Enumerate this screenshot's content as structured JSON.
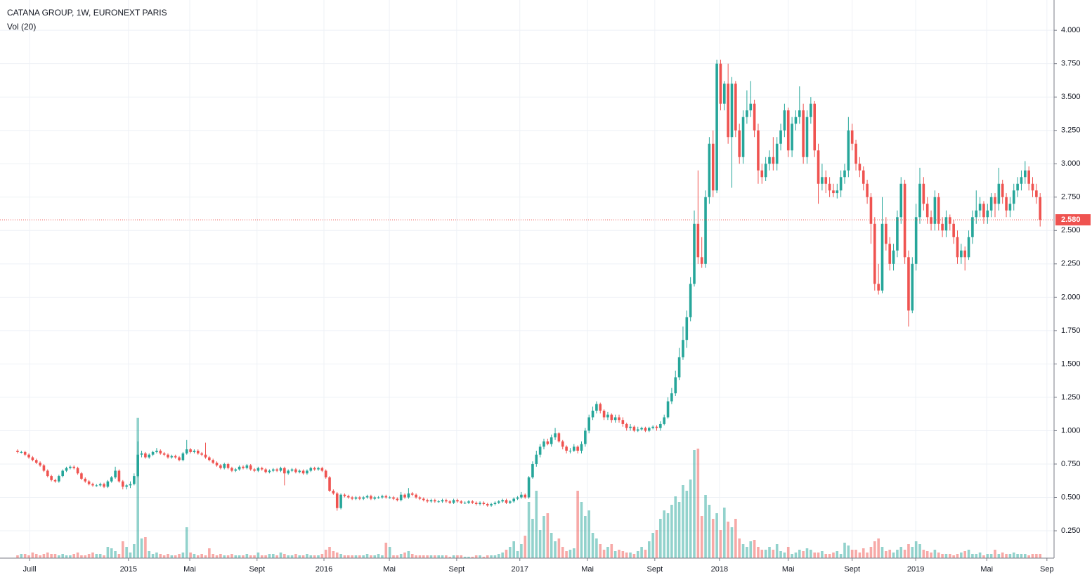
{
  "chart_data": {
    "type": "candlestick",
    "title": "CATANA GROUP, 1W, EURONEXT PARIS",
    "subtitle": "Vol (20)",
    "up_color": "#26a69a",
    "down_color": "#ef5350",
    "grid": true,
    "ylim": [
      0.045,
      4.227
    ],
    "xlim": [
      -4.67,
      275.7
    ],
    "yticks": [
      {
        "value": 0.25,
        "label": "0.250"
      },
      {
        "value": 0.5,
        "label": "0.500"
      },
      {
        "value": 0.75,
        "label": "0.750"
      },
      {
        "value": 1.0,
        "label": "1.000"
      },
      {
        "value": 1.25,
        "label": "1.250"
      },
      {
        "value": 1.5,
        "label": "1.500"
      },
      {
        "value": 1.75,
        "label": "1.750"
      },
      {
        "value": 2.0,
        "label": "2.000"
      },
      {
        "value": 2.25,
        "label": "2.250"
      },
      {
        "value": 2.5,
        "label": "2.500"
      },
      {
        "value": 2.75,
        "label": "2.750"
      },
      {
        "value": 3.0,
        "label": "3.000"
      },
      {
        "value": 3.25,
        "label": "3.250"
      },
      {
        "value": 3.5,
        "label": "3.500"
      },
      {
        "value": 3.75,
        "label": "3.750"
      },
      {
        "value": 4.0,
        "label": "4.000"
      }
    ],
    "xticks": [
      {
        "value": 3.2,
        "label": "Juill"
      },
      {
        "value": 29.5,
        "label": "2015"
      },
      {
        "value": 45.8,
        "label": "Mai"
      },
      {
        "value": 63.7,
        "label": "Sept"
      },
      {
        "value": 81.5,
        "label": "2016"
      },
      {
        "value": 98.9,
        "label": "Mai"
      },
      {
        "value": 116.8,
        "label": "Sept"
      },
      {
        "value": 133.6,
        "label": "2017"
      },
      {
        "value": 151.6,
        "label": "Mai"
      },
      {
        "value": 169.5,
        "label": "Sept"
      },
      {
        "value": 186.7,
        "label": "2018"
      },
      {
        "value": 205.0,
        "label": "Mai"
      },
      {
        "value": 222.0,
        "label": "Sept"
      },
      {
        "value": 238.9,
        "label": "2019"
      },
      {
        "value": 257.8,
        "label": "Mai"
      },
      {
        "value": 273.8,
        "label": "Sep"
      }
    ],
    "last_price": {
      "value": 2.58,
      "label": "2.580"
    },
    "open": [
      0.85,
      0.84,
      0.84,
      0.82,
      0.8,
      0.78,
      0.76,
      0.74,
      0.7,
      0.66,
      0.63,
      0.62,
      0.66,
      0.7,
      0.72,
      0.73,
      0.72,
      0.68,
      0.64,
      0.62,
      0.6,
      0.59,
      0.59,
      0.6,
      0.58,
      0.62,
      0.65,
      0.7,
      0.62,
      0.58,
      0.59,
      0.6,
      0.66,
      0.82,
      0.83,
      0.8,
      0.82,
      0.84,
      0.85,
      0.83,
      0.82,
      0.8,
      0.81,
      0.8,
      0.78,
      0.83,
      0.86,
      0.84,
      0.85,
      0.83,
      0.82,
      0.8,
      0.78,
      0.76,
      0.74,
      0.72,
      0.75,
      0.72,
      0.7,
      0.71,
      0.73,
      0.72,
      0.74,
      0.71,
      0.7,
      0.72,
      0.71,
      0.69,
      0.7,
      0.71,
      0.7,
      0.72,
      0.68,
      0.7,
      0.71,
      0.69,
      0.7,
      0.68,
      0.7,
      0.72,
      0.71,
      0.72,
      0.7,
      0.65,
      0.55,
      0.53,
      0.42,
      0.52,
      0.51,
      0.5,
      0.49,
      0.5,
      0.49,
      0.5,
      0.51,
      0.49,
      0.5,
      0.5,
      0.51,
      0.5,
      0.5,
      0.49,
      0.48,
      0.52,
      0.5,
      0.53,
      0.52,
      0.5,
      0.49,
      0.48,
      0.47,
      0.48,
      0.47,
      0.47,
      0.48,
      0.47,
      0.46,
      0.48,
      0.47,
      0.46,
      0.46,
      0.47,
      0.46,
      0.45,
      0.46,
      0.45,
      0.44,
      0.45,
      0.46,
      0.47,
      0.48,
      0.46,
      0.47,
      0.49,
      0.5,
      0.52,
      0.5,
      0.65,
      0.75,
      0.82,
      0.88,
      0.92,
      0.9,
      0.95,
      0.98,
      0.92,
      0.88,
      0.85,
      0.85,
      0.88,
      0.85,
      0.9,
      1.0,
      1.1,
      1.15,
      1.2,
      1.15,
      1.1,
      1.12,
      1.08,
      1.1,
      1.08,
      1.05,
      1.02,
      1.03,
      1.0,
      1.01,
      1.02,
      1.0,
      1.02,
      1.03,
      1.02,
      1.05,
      1.1,
      1.22,
      1.28,
      1.4,
      1.55,
      1.68,
      1.85,
      2.1,
      2.55,
      2.3,
      2.25,
      2.75,
      3.15,
      2.8,
      3.75,
      3.45,
      3.6,
      3.2,
      3.6,
      3.25,
      3.05,
      3.35,
      3.4,
      3.45,
      3.25,
      2.95,
      2.9,
      3.0,
      3.05,
      3.0,
      3.15,
      3.25,
      3.4,
      3.1,
      3.3,
      3.35,
      3.4,
      3.05,
      3.35,
      3.45,
      3.1,
      2.85,
      2.9,
      2.85,
      2.8,
      2.78,
      2.8,
      2.9,
      2.95,
      3.25,
      3.15,
      3.0,
      2.95,
      2.85,
      2.75,
      2.55,
      2.1,
      2.05,
      2.55,
      2.4,
      2.25,
      2.35,
      2.6,
      2.85,
      2.3,
      1.9,
      2.25,
      2.6,
      2.85,
      2.7,
      2.6,
      2.55,
      2.75,
      2.55,
      2.5,
      2.6,
      2.55,
      2.45,
      2.3,
      2.35,
      2.3,
      2.45,
      2.6,
      2.65,
      2.7,
      2.6,
      2.65,
      2.75,
      2.7,
      2.85,
      2.75,
      2.65,
      2.7,
      2.8,
      2.85,
      2.9,
      2.95,
      2.85,
      2.8,
      2.75
    ],
    "high": [
      0.86,
      0.85,
      0.85,
      0.83,
      0.81,
      0.79,
      0.77,
      0.75,
      0.71,
      0.67,
      0.64,
      0.67,
      0.71,
      0.73,
      0.74,
      0.74,
      0.73,
      0.69,
      0.65,
      0.63,
      0.61,
      0.6,
      0.61,
      0.61,
      0.63,
      0.66,
      0.73,
      0.71,
      0.63,
      0.6,
      0.62,
      0.68,
      0.92,
      0.85,
      0.84,
      0.83,
      0.85,
      0.87,
      0.86,
      0.84,
      0.83,
      0.82,
      0.82,
      0.81,
      0.84,
      0.93,
      0.87,
      0.86,
      0.86,
      0.84,
      0.91,
      0.81,
      0.79,
      0.77,
      0.75,
      0.76,
      0.76,
      0.73,
      0.72,
      0.74,
      0.74,
      0.75,
      0.75,
      0.72,
      0.73,
      0.73,
      0.72,
      0.71,
      0.72,
      0.72,
      0.73,
      0.73,
      0.71,
      0.72,
      0.72,
      0.71,
      0.71,
      0.71,
      0.73,
      0.73,
      0.73,
      0.73,
      0.71,
      0.66,
      0.56,
      0.54,
      0.53,
      0.53,
      0.52,
      0.51,
      0.51,
      0.51,
      0.51,
      0.52,
      0.52,
      0.51,
      0.51,
      0.52,
      0.52,
      0.51,
      0.51,
      0.5,
      0.54,
      0.53,
      0.57,
      0.54,
      0.53,
      0.51,
      0.5,
      0.49,
      0.49,
      0.49,
      0.48,
      0.49,
      0.49,
      0.48,
      0.49,
      0.49,
      0.48,
      0.47,
      0.48,
      0.48,
      0.47,
      0.47,
      0.47,
      0.46,
      0.46,
      0.47,
      0.48,
      0.49,
      0.49,
      0.48,
      0.5,
      0.51,
      0.54,
      0.53,
      0.66,
      0.77,
      0.85,
      0.9,
      0.94,
      0.94,
      0.97,
      1.02,
      0.99,
      0.93,
      0.89,
      0.87,
      0.9,
      0.89,
      0.92,
      1.02,
      1.12,
      1.18,
      1.22,
      1.21,
      1.16,
      1.14,
      1.13,
      1.12,
      1.12,
      1.1,
      1.06,
      1.05,
      1.04,
      1.03,
      1.03,
      1.03,
      1.03,
      1.04,
      1.04,
      1.07,
      1.12,
      1.25,
      1.32,
      1.45,
      1.62,
      1.78,
      1.9,
      2.15,
      2.65,
      2.95,
      2.45,
      2.8,
      3.2,
      3.25,
      3.78,
      3.78,
      3.62,
      3.75,
      3.65,
      3.62,
      3.3,
      3.4,
      3.55,
      3.62,
      3.48,
      3.3,
      3.0,
      3.05,
      3.1,
      3.2,
      3.2,
      3.3,
      3.45,
      3.42,
      3.35,
      3.4,
      3.58,
      3.45,
      3.4,
      3.5,
      3.47,
      3.15,
      3.0,
      2.95,
      2.9,
      2.85,
      2.85,
      2.95,
      3.0,
      3.35,
      3.3,
      3.18,
      3.05,
      2.98,
      2.88,
      2.78,
      2.6,
      2.25,
      2.75,
      2.6,
      2.45,
      2.4,
      2.65,
      2.9,
      2.88,
      2.35,
      2.3,
      2.7,
      2.97,
      2.9,
      2.75,
      2.65,
      2.8,
      2.78,
      2.6,
      2.65,
      2.62,
      2.58,
      2.5,
      2.4,
      2.38,
      2.5,
      2.65,
      2.8,
      2.75,
      2.72,
      2.7,
      2.78,
      2.78,
      2.97,
      2.88,
      2.78,
      2.75,
      2.85,
      2.9,
      2.95,
      3.02,
      2.98,
      2.9,
      2.85,
      2.78
    ],
    "low": [
      0.83,
      0.83,
      0.81,
      0.79,
      0.77,
      0.75,
      0.73,
      0.69,
      0.65,
      0.62,
      0.61,
      0.61,
      0.65,
      0.69,
      0.71,
      0.71,
      0.67,
      0.63,
      0.61,
      0.59,
      0.58,
      0.58,
      0.58,
      0.57,
      0.57,
      0.61,
      0.64,
      0.61,
      0.56,
      0.56,
      0.57,
      0.59,
      0.65,
      0.8,
      0.79,
      0.79,
      0.81,
      0.83,
      0.82,
      0.81,
      0.79,
      0.79,
      0.79,
      0.77,
      0.77,
      0.82,
      0.83,
      0.83,
      0.82,
      0.81,
      0.79,
      0.77,
      0.75,
      0.73,
      0.71,
      0.71,
      0.71,
      0.69,
      0.69,
      0.7,
      0.71,
      0.71,
      0.7,
      0.69,
      0.69,
      0.7,
      0.68,
      0.68,
      0.69,
      0.69,
      0.69,
      0.59,
      0.67,
      0.69,
      0.68,
      0.68,
      0.67,
      0.67,
      0.69,
      0.7,
      0.7,
      0.69,
      0.64,
      0.54,
      0.52,
      0.4,
      0.41,
      0.5,
      0.49,
      0.48,
      0.48,
      0.48,
      0.48,
      0.49,
      0.48,
      0.48,
      0.49,
      0.49,
      0.49,
      0.49,
      0.48,
      0.47,
      0.47,
      0.49,
      0.49,
      0.51,
      0.49,
      0.48,
      0.47,
      0.46,
      0.46,
      0.46,
      0.46,
      0.46,
      0.46,
      0.45,
      0.45,
      0.46,
      0.45,
      0.45,
      0.45,
      0.45,
      0.44,
      0.44,
      0.44,
      0.43,
      0.43,
      0.44,
      0.45,
      0.46,
      0.45,
      0.45,
      0.46,
      0.48,
      0.49,
      0.49,
      0.49,
      0.64,
      0.73,
      0.8,
      0.86,
      0.89,
      0.88,
      0.93,
      0.91,
      0.86,
      0.83,
      0.83,
      0.84,
      0.83,
      0.83,
      0.88,
      0.98,
      1.08,
      1.13,
      1.13,
      1.08,
      1.08,
      1.06,
      1.06,
      1.06,
      1.03,
      1.0,
      1.0,
      0.99,
      0.99,
      1.0,
      0.99,
      0.99,
      1.01,
      1.0,
      1.0,
      1.04,
      1.09,
      1.2,
      1.26,
      1.38,
      1.53,
      1.62,
      1.82,
      2.08,
      2.25,
      2.22,
      2.22,
      2.7,
      2.75,
      2.78,
      3.4,
      3.4,
      3.15,
      2.82,
      3.2,
      3.0,
      3.0,
      3.3,
      3.35,
      3.2,
      2.85,
      2.85,
      2.87,
      2.95,
      2.95,
      2.95,
      3.1,
      3.2,
      3.05,
      3.05,
      3.25,
      3.3,
      3.0,
      3.0,
      3.3,
      3.05,
      2.7,
      2.8,
      2.78,
      2.75,
      2.75,
      2.74,
      2.75,
      2.85,
      2.9,
      3.1,
      2.95,
      2.9,
      2.8,
      2.7,
      2.4,
      2.05,
      2.02,
      2.03,
      2.35,
      2.2,
      2.2,
      2.3,
      2.55,
      2.25,
      1.78,
      1.88,
      2.2,
      2.55,
      2.65,
      2.55,
      2.5,
      2.5,
      2.5,
      2.45,
      2.45,
      2.5,
      2.4,
      2.25,
      2.25,
      2.2,
      2.28,
      2.4,
      2.55,
      2.6,
      2.55,
      2.55,
      2.6,
      2.6,
      2.65,
      2.7,
      2.6,
      2.6,
      2.65,
      2.75,
      2.8,
      2.85,
      2.8,
      2.75,
      2.7,
      2.53
    ],
    "close": [
      0.84,
      0.84,
      0.82,
      0.8,
      0.78,
      0.76,
      0.74,
      0.7,
      0.66,
      0.63,
      0.62,
      0.66,
      0.7,
      0.72,
      0.73,
      0.72,
      0.68,
      0.64,
      0.62,
      0.6,
      0.59,
      0.59,
      0.6,
      0.58,
      0.62,
      0.65,
      0.7,
      0.62,
      0.58,
      0.59,
      0.6,
      0.66,
      0.82,
      0.83,
      0.8,
      0.82,
      0.84,
      0.85,
      0.83,
      0.82,
      0.8,
      0.81,
      0.8,
      0.78,
      0.83,
      0.86,
      0.84,
      0.85,
      0.83,
      0.82,
      0.8,
      0.78,
      0.76,
      0.74,
      0.72,
      0.75,
      0.72,
      0.7,
      0.71,
      0.73,
      0.72,
      0.74,
      0.71,
      0.7,
      0.72,
      0.71,
      0.69,
      0.7,
      0.71,
      0.7,
      0.72,
      0.68,
      0.7,
      0.71,
      0.69,
      0.7,
      0.68,
      0.7,
      0.72,
      0.71,
      0.72,
      0.7,
      0.65,
      0.55,
      0.53,
      0.42,
      0.52,
      0.51,
      0.5,
      0.49,
      0.5,
      0.49,
      0.5,
      0.51,
      0.49,
      0.5,
      0.5,
      0.51,
      0.5,
      0.5,
      0.49,
      0.48,
      0.52,
      0.5,
      0.53,
      0.52,
      0.5,
      0.49,
      0.48,
      0.47,
      0.48,
      0.47,
      0.47,
      0.48,
      0.47,
      0.46,
      0.48,
      0.47,
      0.46,
      0.46,
      0.47,
      0.46,
      0.45,
      0.46,
      0.45,
      0.44,
      0.45,
      0.46,
      0.47,
      0.48,
      0.46,
      0.47,
      0.49,
      0.5,
      0.52,
      0.5,
      0.65,
      0.75,
      0.82,
      0.88,
      0.92,
      0.9,
      0.95,
      0.98,
      0.92,
      0.88,
      0.85,
      0.85,
      0.88,
      0.85,
      0.9,
      1.0,
      1.1,
      1.15,
      1.2,
      1.15,
      1.1,
      1.12,
      1.08,
      1.1,
      1.08,
      1.05,
      1.02,
      1.03,
      1.0,
      1.01,
      1.02,
      1.0,
      1.02,
      1.03,
      1.02,
      1.05,
      1.1,
      1.22,
      1.28,
      1.4,
      1.55,
      1.68,
      1.85,
      2.1,
      2.55,
      2.3,
      2.25,
      2.75,
      3.15,
      2.8,
      3.75,
      3.45,
      3.6,
      3.2,
      3.6,
      3.25,
      3.05,
      3.35,
      3.4,
      3.45,
      3.25,
      2.95,
      2.9,
      3.0,
      3.05,
      3.0,
      3.15,
      3.25,
      3.4,
      3.1,
      3.3,
      3.35,
      3.4,
      3.05,
      3.35,
      3.45,
      3.1,
      2.85,
      2.9,
      2.85,
      2.8,
      2.78,
      2.8,
      2.9,
      2.95,
      3.25,
      3.15,
      3.0,
      2.95,
      2.85,
      2.75,
      2.55,
      2.1,
      2.05,
      2.55,
      2.4,
      2.25,
      2.35,
      2.6,
      2.85,
      2.3,
      1.9,
      2.25,
      2.6,
      2.85,
      2.7,
      2.6,
      2.55,
      2.75,
      2.55,
      2.5,
      2.6,
      2.55,
      2.45,
      2.3,
      2.35,
      2.3,
      2.45,
      2.6,
      2.65,
      2.7,
      2.6,
      2.65,
      2.75,
      2.7,
      2.85,
      2.75,
      2.65,
      2.7,
      2.8,
      2.85,
      2.9,
      2.95,
      2.85,
      2.8,
      2.75,
      2.58
    ],
    "volume": [
      2,
      3,
      3,
      2,
      4,
      3,
      2,
      3,
      4,
      3,
      3,
      2,
      3,
      2,
      2,
      3,
      4,
      2,
      2,
      3,
      4,
      3,
      3,
      2,
      8,
      7,
      5,
      3,
      12,
      8,
      4,
      10,
      100,
      14,
      15,
      5,
      3,
      4,
      3,
      2,
      3,
      2,
      2,
      3,
      4,
      22,
      4,
      3,
      2,
      3,
      2,
      7,
      3,
      2,
      3,
      2,
      2,
      3,
      2,
      2,
      2,
      3,
      2,
      2,
      4,
      2,
      2,
      3,
      3,
      2,
      4,
      3,
      2,
      2,
      3,
      2,
      2,
      3,
      2,
      2,
      2,
      3,
      6,
      8,
      5,
      4,
      3,
      2,
      2,
      2,
      2,
      2,
      2,
      3,
      2,
      2,
      3,
      2,
      11,
      8,
      2,
      2,
      3,
      4,
      5,
      3,
      2,
      2,
      2,
      2,
      2,
      2,
      2,
      2,
      2,
      1,
      2,
      2,
      2,
      1,
      1,
      1,
      2,
      2,
      1,
      2,
      2,
      2,
      3,
      4,
      6,
      8,
      12,
      5,
      10,
      16,
      40,
      28,
      48,
      20,
      30,
      32,
      18,
      12,
      14,
      8,
      5,
      6,
      7,
      48,
      40,
      30,
      34,
      18,
      14,
      10,
      6,
      8,
      10,
      5,
      6,
      5,
      4,
      4,
      3,
      5,
      8,
      6,
      12,
      18,
      20,
      28,
      34,
      32,
      38,
      44,
      40,
      52,
      48,
      56,
      77,
      78,
      30,
      45,
      38,
      28,
      32,
      20,
      36,
      26,
      22,
      28,
      14,
      10,
      8,
      12,
      13,
      8,
      6,
      6,
      8,
      6,
      10,
      5,
      4,
      8,
      3,
      4,
      6,
      5,
      7,
      6,
      4,
      4,
      5,
      3,
      3,
      4,
      5,
      3,
      11,
      9,
      6,
      6,
      4,
      7,
      4,
      8,
      12,
      14,
      8,
      5,
      6,
      4,
      6,
      8,
      6,
      10,
      8,
      12,
      10,
      6,
      5,
      4,
      6,
      4,
      3,
      3,
      3,
      2,
      3,
      4,
      5,
      6,
      3,
      3,
      4,
      2,
      3,
      3,
      6,
      3,
      4,
      3,
      3,
      4,
      3,
      3,
      3,
      2,
      3,
      3,
      3
    ]
  }
}
